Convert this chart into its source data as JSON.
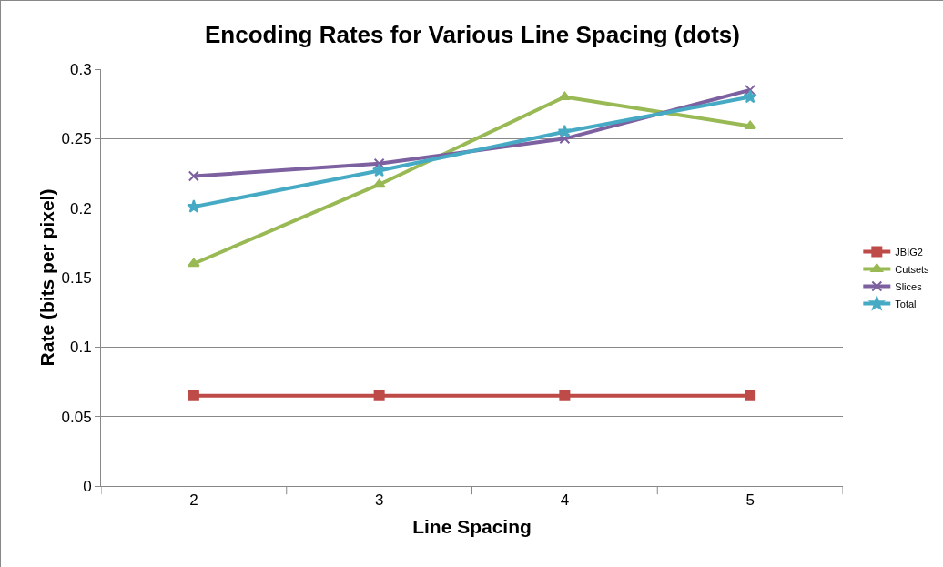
{
  "chart_data": {
    "type": "line",
    "title": "Encoding Rates for Various Line Spacing (dots)",
    "xlabel": "Line Spacing",
    "ylabel": "Rate (bits per pixel)",
    "categories": [
      "2",
      "3",
      "4",
      "5"
    ],
    "series": [
      {
        "name": "JBIG2",
        "color": "#be4b48",
        "marker": "square",
        "values": [
          0.065,
          0.065,
          0.065,
          0.065
        ]
      },
      {
        "name": "Cutsets",
        "color": "#98b954",
        "marker": "triangle",
        "values": [
          0.16,
          0.217,
          0.28,
          0.259
        ]
      },
      {
        "name": "Slices",
        "color": "#7d60a0",
        "marker": "cross",
        "values": [
          0.223,
          0.232,
          0.25,
          0.285
        ]
      },
      {
        "name": "Total",
        "color": "#46aac5",
        "marker": "star",
        "values": [
          0.201,
          0.227,
          0.255,
          0.28
        ]
      }
    ],
    "ylim": [
      0,
      0.3
    ],
    "yticks": [
      0,
      0.05,
      0.1,
      0.15,
      0.2,
      0.25,
      0.3
    ],
    "grid": "y",
    "legend": "right",
    "line_style": "solid"
  }
}
